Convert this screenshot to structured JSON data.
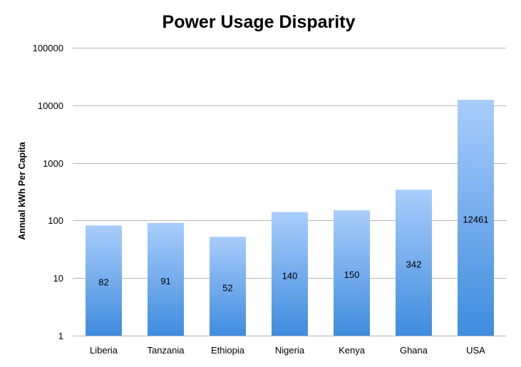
{
  "chart_data": {
    "type": "bar",
    "title": "Power Usage Disparity",
    "xlabel": "",
    "ylabel": "Annual kWh Per Capita",
    "y_scale": "log",
    "ylim": [
      1,
      100000
    ],
    "yticks": [
      "1",
      "10",
      "100",
      "1000",
      "10000",
      "100000"
    ],
    "grid": true,
    "legend": "none",
    "categories": [
      "Liberia",
      "Tanzania",
      "Ethiopia",
      "Nigeria",
      "Kenya",
      "Ghana",
      "USA"
    ],
    "values": [
      82,
      91,
      52,
      140,
      150,
      342,
      12461
    ],
    "data_labels": [
      "82",
      "91",
      "52",
      "140",
      "150",
      "342",
      "12461"
    ],
    "colors": {
      "bar_top": "#a9cdfb",
      "bar_bottom": "#3f8cde",
      "grid": "#b5b5b5"
    }
  }
}
